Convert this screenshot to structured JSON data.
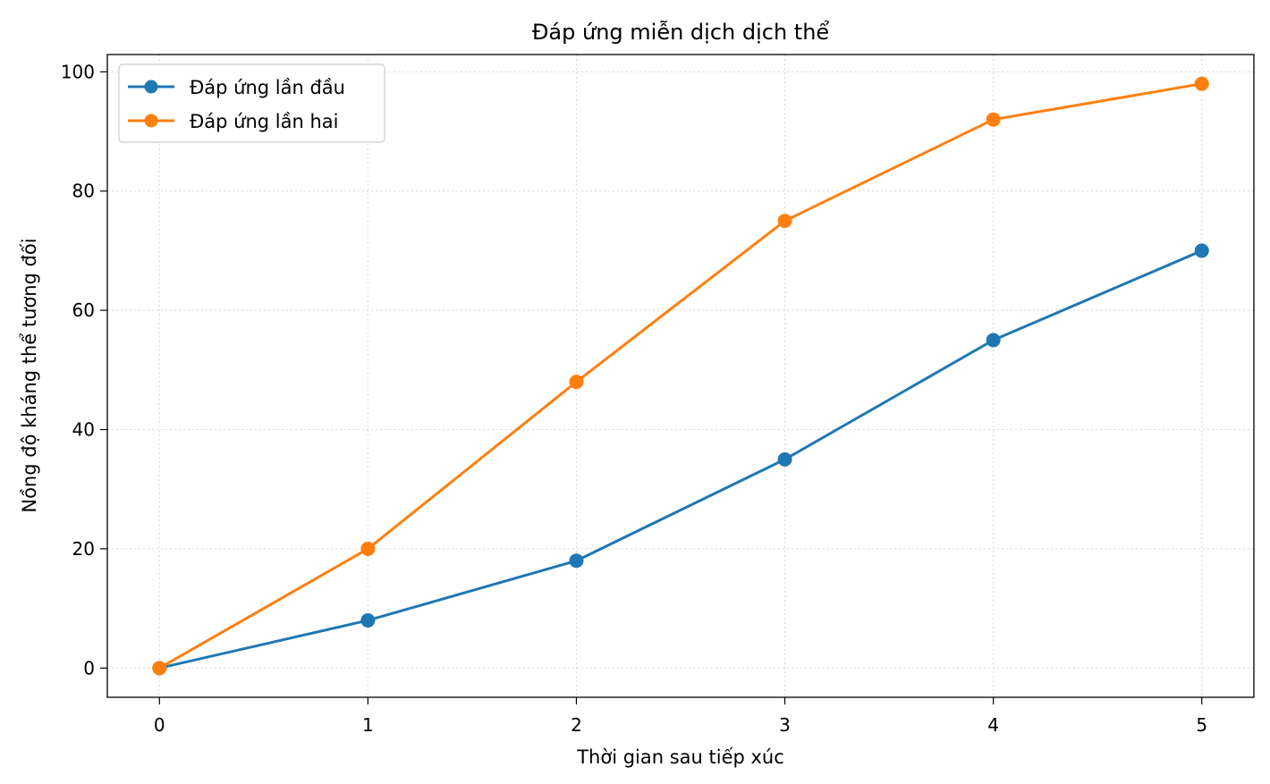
{
  "chart_data": {
    "type": "line",
    "title": "Đáp ứng miễn dịch dịch thể",
    "xlabel": "Thời gian sau tiếp xúc",
    "ylabel": "Nồng độ kháng thể tương đối",
    "x": [
      0,
      1,
      2,
      3,
      4,
      5
    ],
    "xlim": [
      -0.25,
      5.25
    ],
    "ylim": [
      -4.9,
      102.9
    ],
    "xticks": [
      0,
      1,
      2,
      3,
      4,
      5
    ],
    "yticks": [
      0,
      20,
      40,
      60,
      80,
      100
    ],
    "grid": true,
    "legend_position": "top-left",
    "series": [
      {
        "name": "Đáp ứng lần đầu",
        "color": "#1f77b4",
        "values": [
          0,
          8,
          18,
          35,
          55,
          70
        ]
      },
      {
        "name": "Đáp ứng lần hai",
        "color": "#ff7f0e",
        "values": [
          0,
          20,
          48,
          75,
          92,
          98
        ]
      }
    ]
  }
}
